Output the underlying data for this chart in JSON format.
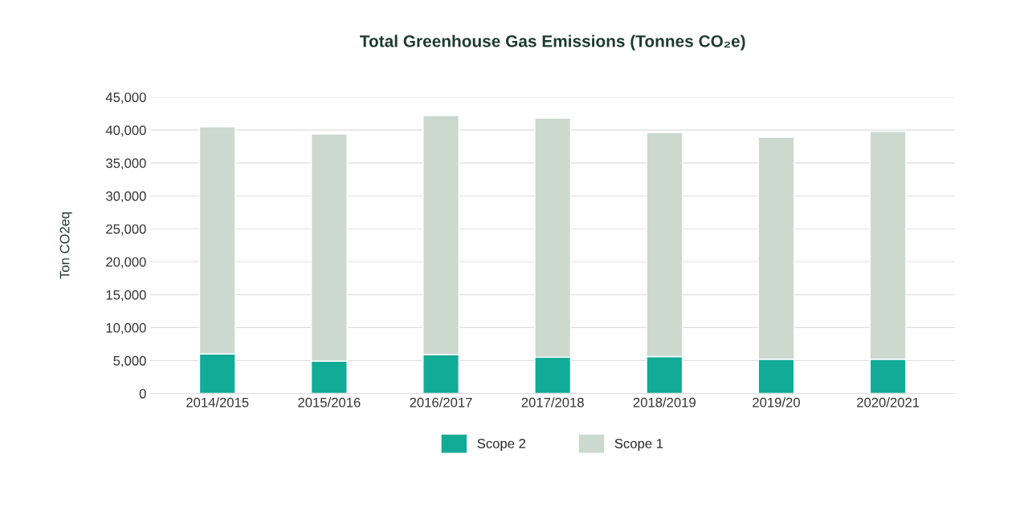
{
  "chart_data": {
    "type": "bar",
    "title": "Total Greenhouse Gas Emissions (Tonnes CO₂e)",
    "ylabel": "Ton CO2eq",
    "categories": [
      "2014/2015",
      "2015/2016",
      "2016/2017",
      "2017/2018",
      "2018/2019",
      "2019/20",
      "2020/2021"
    ],
    "stacked": true,
    "series": [
      {
        "name": "Scope 2",
        "color": "#12ab97",
        "values": [
          6000,
          4900,
          5900,
          5500,
          5600,
          5200,
          5200
        ]
      },
      {
        "name": "Scope 1",
        "color": "#cbd9cf",
        "values": [
          34500,
          34500,
          36300,
          36300,
          34000,
          33700,
          34600
        ]
      }
    ],
    "ylim": [
      0,
      45000
    ],
    "yticks": [
      {
        "value": 0,
        "label": "0"
      },
      {
        "value": 5000,
        "label": "5,000"
      },
      {
        "value": 10000,
        "label": "10,000"
      },
      {
        "value": 15000,
        "label": "15,000"
      },
      {
        "value": 20000,
        "label": "20,000"
      },
      {
        "value": 25000,
        "label": "25,000"
      },
      {
        "value": 30000,
        "label": "30,000"
      },
      {
        "value": 35000,
        "label": "35,000"
      },
      {
        "value": 40000,
        "label": "40,000"
      },
      {
        "value": 45000,
        "label": "45,000"
      }
    ],
    "grid": "y",
    "legend": "bottom"
  }
}
